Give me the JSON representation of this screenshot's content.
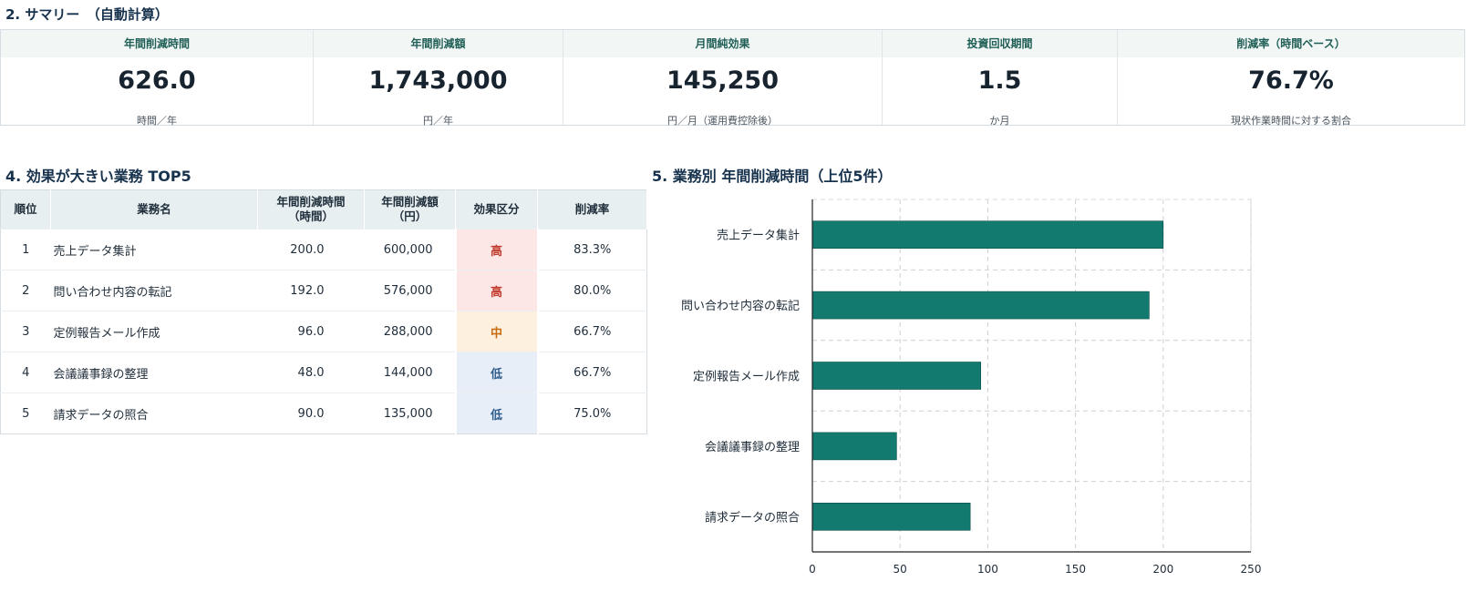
{
  "summary": {
    "title": "2. サマリー　（自動計算）",
    "cards": [
      {
        "label": "年間削減時間",
        "value": "626.0",
        "unit": "時間／年"
      },
      {
        "label": "年間削減額",
        "value": "1,743,000",
        "unit": "円／年"
      },
      {
        "label": "月間純効果",
        "value": "145,250",
        "unit": "円／月（運用費控除後）"
      },
      {
        "label": "投資回収期間",
        "value": "1.5",
        "unit": "か月"
      },
      {
        "label": "削減率（時間ベース）",
        "value": "76.7%",
        "unit": "現状作業時間に対する割合"
      }
    ]
  },
  "top5": {
    "title": "4. 効果が大きい業務 TOP5",
    "headers": [
      "順位",
      "業務名",
      "年間削減時間\n（時間）",
      "年間削減額\n（円）",
      "効果区分",
      "削減率"
    ],
    "rows": [
      {
        "rank": "1",
        "name": "売上データ集計",
        "hours": "200.0",
        "amount": "600,000",
        "effect": "高",
        "rate": "83.3%"
      },
      {
        "rank": "2",
        "name": "問い合わせ内容の転記",
        "hours": "192.0",
        "amount": "576,000",
        "effect": "高",
        "rate": "80.0%"
      },
      {
        "rank": "3",
        "name": "定例報告メール作成",
        "hours": "96.0",
        "amount": "288,000",
        "effect": "中",
        "rate": "66.7%"
      },
      {
        "rank": "4",
        "name": "会議議事録の整理",
        "hours": "48.0",
        "amount": "144,000",
        "effect": "低",
        "rate": "66.7%"
      },
      {
        "rank": "5",
        "name": "請求データの照合",
        "hours": "90.0",
        "amount": "135,000",
        "effect": "低",
        "rate": "75.0%"
      }
    ]
  },
  "chart_data": {
    "type": "bar",
    "orientation": "horizontal",
    "title": "5. 業務別 年間削減時間（上位5件）",
    "categories": [
      "売上データ集計",
      "問い合わせ内容の転記",
      "定例報告メール作成",
      "会議議事録の整理",
      "請求データの照合"
    ],
    "values": [
      200,
      192,
      96,
      48,
      90
    ],
    "xlim": [
      0,
      250
    ],
    "xticks": [
      0,
      50,
      100,
      150,
      200,
      250
    ],
    "grid": true,
    "bar_color": "#127a6f"
  }
}
